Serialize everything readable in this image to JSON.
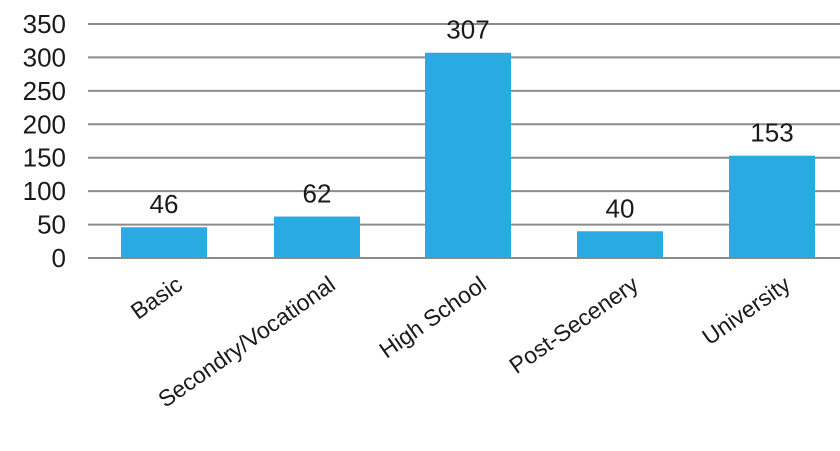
{
  "chart_data": {
    "type": "bar",
    "title": "",
    "xlabel": "",
    "ylabel": "",
    "categories": [
      "Basic",
      "Secondry/Vocational",
      "High School",
      "Post-Secenery",
      "University"
    ],
    "values": [
      46,
      62,
      307,
      40,
      153
    ],
    "data_labels": [
      "46",
      "62",
      "307",
      "40",
      "153"
    ],
    "ylim": [
      0,
      350
    ],
    "yticks": [
      0,
      50,
      100,
      150,
      200,
      250,
      300,
      350
    ],
    "grid": true,
    "legend": "none",
    "bar_color": "#29abe2"
  }
}
